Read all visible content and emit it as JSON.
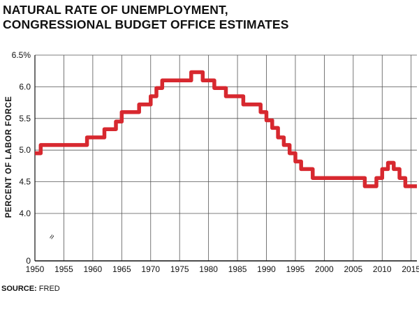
{
  "title": {
    "line1": "NATURAL RATE OF UNEMPLOYMENT,",
    "line2": "CONGRESSIONAL BUDGET OFFICE ESTIMATES"
  },
  "source": {
    "label": "SOURCE:",
    "value": "FRED"
  },
  "chart_data": {
    "type": "line",
    "ylabel": "PERCENT OF LABOR FORCE",
    "xlim": [
      1950,
      2016
    ],
    "y_ticks": [
      {
        "value": 6.5,
        "label": "6.5%"
      },
      {
        "value": 6.0,
        "label": "6.0"
      },
      {
        "value": 5.5,
        "label": "5.5"
      },
      {
        "value": 5.0,
        "label": "5.0"
      },
      {
        "value": 4.5,
        "label": "4.5"
      },
      {
        "value": 4.0,
        "label": "4.0"
      },
      {
        "value": 0,
        "label": "0"
      }
    ],
    "x_ticks": [
      "1950",
      "1955",
      "1960",
      "1965",
      "1970",
      "1975",
      "1980",
      "1985",
      "1990",
      "1995",
      "2000",
      "2005",
      "2010",
      "2015"
    ],
    "axis_break": "≈",
    "grid": true,
    "color": "#d7282f",
    "series": [
      {
        "x": [
          1950,
          1951,
          1951,
          1959,
          1959,
          1962,
          1962,
          1964,
          1964,
          1965,
          1965,
          1968,
          1968,
          1970,
          1970,
          1971,
          1971,
          1972,
          1972,
          1977,
          1977,
          1979,
          1979,
          1981,
          1981,
          1983,
          1983,
          1986,
          1986,
          1989,
          1989,
          1990,
          1990,
          1991,
          1991,
          1992,
          1992,
          1993,
          1993,
          1994,
          1994,
          1995,
          1995,
          1996,
          1996,
          1998,
          1998,
          2007,
          2007,
          2009,
          2009,
          2010,
          2010,
          2011,
          2011,
          2012,
          2012,
          2013,
          2013,
          2014,
          2014,
          2016
        ],
        "y": [
          4.95,
          4.95,
          5.08,
          5.08,
          5.2,
          5.2,
          5.33,
          5.33,
          5.45,
          5.45,
          5.6,
          5.6,
          5.72,
          5.72,
          5.85,
          5.85,
          5.98,
          5.98,
          6.1,
          6.1,
          6.23,
          6.23,
          6.1,
          6.1,
          5.98,
          5.98,
          5.85,
          5.85,
          5.72,
          5.72,
          5.6,
          5.6,
          5.47,
          5.47,
          5.35,
          5.35,
          5.2,
          5.2,
          5.08,
          5.08,
          4.95,
          4.95,
          4.82,
          4.82,
          4.7,
          4.7,
          4.56,
          4.56,
          4.43,
          4.43,
          4.56,
          4.56,
          4.7,
          4.7,
          4.8,
          4.8,
          4.7,
          4.7,
          4.56,
          4.56,
          4.43,
          4.43
        ]
      }
    ]
  }
}
